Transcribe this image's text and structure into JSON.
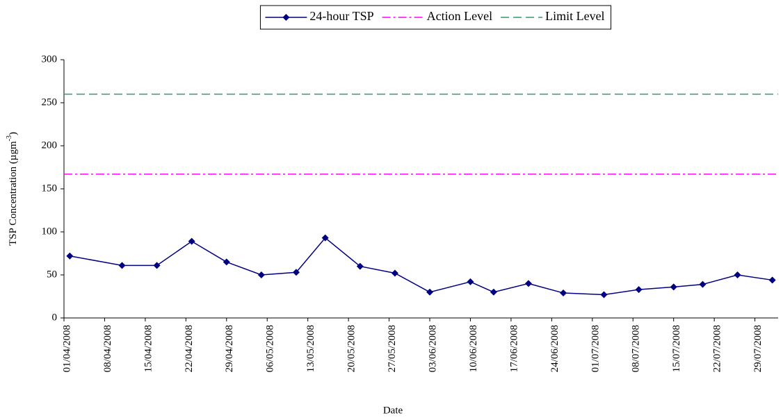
{
  "chart_data": {
    "type": "line",
    "xlabel": "Date",
    "ylabel": {
      "text": "TSP Concentration (µgm",
      "sup": "-3",
      "end": ")"
    },
    "x": [
      "2008-04-02",
      "2008-04-11",
      "2008-04-17",
      "2008-04-23",
      "2008-04-29",
      "2008-05-05",
      "2008-05-11",
      "2008-05-16",
      "2008-05-22",
      "2008-05-28",
      "2008-06-03",
      "2008-06-10",
      "2008-06-14",
      "2008-06-20",
      "2008-06-26",
      "2008-07-03",
      "2008-07-09",
      "2008-07-15",
      "2008-07-20",
      "2008-07-26",
      "2008-08-01"
    ],
    "series": [
      {
        "name": "24-hour TSP",
        "color": "#000080",
        "values": [
          72,
          61,
          61,
          89,
          65,
          50,
          53,
          93,
          60,
          52,
          30,
          42,
          30,
          40,
          29,
          27,
          33,
          36,
          39,
          50,
          44
        ]
      }
    ],
    "reference_lines": [
      {
        "name": "Action Level",
        "value": 167,
        "color": "#ff00ff",
        "dash": "12 4 3 4"
      },
      {
        "name": "Limit Level",
        "value": 260,
        "color": "#339966",
        "dash": "12 6"
      }
    ],
    "xlim": [
      "2008-04-01",
      "2008-08-02"
    ],
    "xticks": [
      {
        "value": "2008-04-01",
        "label": "01/04/2008"
      },
      {
        "value": "2008-04-08",
        "label": "08/04/2008"
      },
      {
        "value": "2008-04-15",
        "label": "15/04/2008"
      },
      {
        "value": "2008-04-22",
        "label": "22/04/2008"
      },
      {
        "value": "2008-04-29",
        "label": "29/04/2008"
      },
      {
        "value": "2008-05-06",
        "label": "06/05/2008"
      },
      {
        "value": "2008-05-13",
        "label": "13/05/2008"
      },
      {
        "value": "2008-05-20",
        "label": "20/05/2008"
      },
      {
        "value": "2008-05-27",
        "label": "27/05/2008"
      },
      {
        "value": "2008-06-03",
        "label": "03/06/2008"
      },
      {
        "value": "2008-06-10",
        "label": "10/06/2008"
      },
      {
        "value": "2008-06-17",
        "label": "17/06/2008"
      },
      {
        "value": "2008-06-24",
        "label": "24/06/2008"
      },
      {
        "value": "2008-07-01",
        "label": "01/07/2008"
      },
      {
        "value": "2008-07-08",
        "label": "08/07/2008"
      },
      {
        "value": "2008-07-15",
        "label": "15/07/2008"
      },
      {
        "value": "2008-07-22",
        "label": "22/07/2008"
      },
      {
        "value": "2008-07-29",
        "label": "29/07/2008"
      }
    ],
    "ylim": [
      0,
      300
    ],
    "yticks": [
      0,
      50,
      100,
      150,
      200,
      250,
      300
    ],
    "grid": false,
    "legend": "top"
  }
}
